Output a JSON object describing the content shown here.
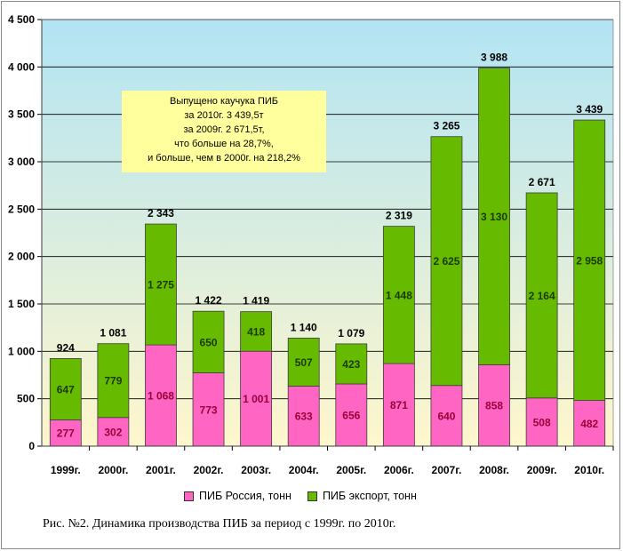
{
  "chart_data": {
    "type": "bar",
    "stacked": true,
    "categories": [
      "1999г.",
      "2000г.",
      "2001г.",
      "2002г.",
      "2003г.",
      "2004г.",
      "2005г.",
      "2006г.",
      "2007г.",
      "2008г.",
      "2009г.",
      "2010г."
    ],
    "series": [
      {
        "name": "ПИБ Россия, тонн",
        "color": "#ff66c4",
        "label_color": "#9b0038",
        "values": [
          277,
          302,
          1068,
          773,
          1001,
          633,
          656,
          871,
          640,
          858,
          508,
          482
        ]
      },
      {
        "name": "ПИБ экспорт, тонн",
        "color": "#66bb00",
        "label_color": "#1a3a00",
        "values": [
          647,
          779,
          1275,
          650,
          418,
          507,
          423,
          1448,
          2625,
          3130,
          2164,
          2958
        ]
      }
    ],
    "totals": [
      924,
      1081,
      2343,
      1422,
      1419,
      1140,
      1079,
      2319,
      3265,
      3988,
      2671,
      3439
    ],
    "series_labels": [
      [
        "277",
        "302",
        "1 068",
        "773",
        "1 001",
        "633",
        "656",
        "871",
        "640",
        "858",
        "508",
        "482"
      ],
      [
        "647",
        "779",
        "1 275",
        "650",
        "418",
        "507",
        "423",
        "1 448",
        "2 625",
        "3 130",
        "2 164",
        "2 958"
      ]
    ],
    "total_labels": [
      "924",
      "1 081",
      "2 343",
      "1 422",
      "1 419",
      "1 140",
      "1 079",
      "2 319",
      "3 265",
      "3 988",
      "2 671",
      "3 439"
    ],
    "ylim": [
      0,
      4500
    ],
    "yticks": [
      0,
      500,
      1000,
      1500,
      2000,
      2500,
      3000,
      3500,
      4000,
      4500
    ],
    "ytick_labels": [
      "0",
      "500",
      "1 000",
      "1 500",
      "2 000",
      "2 500",
      "3 000",
      "3 500",
      "4 000",
      "4 500"
    ],
    "grid": true,
    "legend_position": "bottom",
    "plot_gradient": [
      "#b2e4f4",
      "#fff6cc"
    ],
    "annotation": [
      "Выпущено каучука ПИБ",
      "за 2010г. 3 439,5т",
      "за 2009г. 2 671,5т,",
      "что больше на 28,7%,",
      "и больше, чем в 2000г. на 218,2%"
    ]
  },
  "caption": "Рис. №2. Динамика производства ПИБ за период с 1999г. по 2010г."
}
